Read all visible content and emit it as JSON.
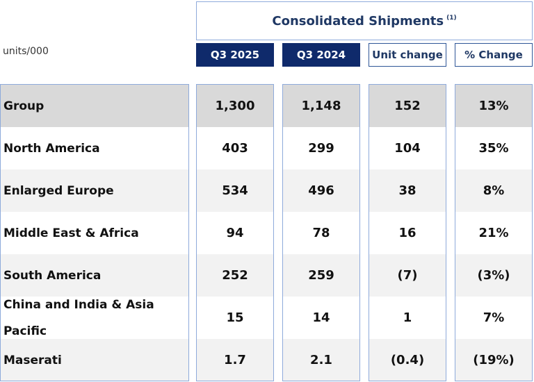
{
  "header": {
    "title": "Consolidated Shipments",
    "footnote": "(1)",
    "units": "units/000"
  },
  "table": {
    "columns": [
      "Q3 2025",
      "Q3 2024",
      "Unit change",
      "% Change"
    ],
    "rows": [
      [
        "Group",
        "1,300",
        "1,148",
        "152",
        "13%"
      ],
      [
        "North America",
        "403",
        "299",
        "104",
        "35%"
      ],
      [
        "Enlarged Europe",
        "534",
        "496",
        "38",
        "8%"
      ],
      [
        "Middle East & Africa",
        "94",
        "78",
        "16",
        "21%"
      ],
      [
        "South America",
        "252",
        "259",
        "(7)",
        "(3%)"
      ],
      [
        "China and India & Asia Pacific",
        "15",
        "14",
        "1",
        "7%"
      ],
      [
        "Maserati",
        "1.7",
        "2.1",
        "(0.4)",
        "(19%)"
      ]
    ]
  }
}
